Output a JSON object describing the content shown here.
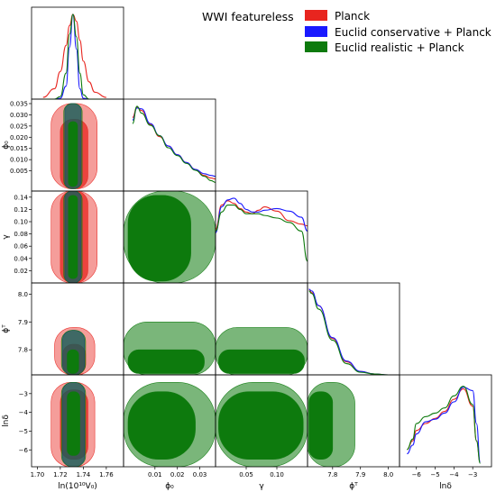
{
  "chart_data": {
    "type": "triangle-corner",
    "legend": {
      "title": "WWI featureless",
      "placement": "top-right",
      "entries": [
        {
          "label": "Planck",
          "color": "#e8251f"
        },
        {
          "label": "Euclid conservative + Planck",
          "color": "#1a1aff"
        },
        {
          "label": "Euclid realistic + Planck",
          "color": "#0d7a0d"
        }
      ]
    },
    "parameters": [
      {
        "id": "lnA",
        "label": "ln(10¹⁰V₀)",
        "range": [
          1.695,
          1.775
        ],
        "ticks": [
          1.7,
          1.72,
          1.74,
          1.76
        ],
        "tick_labels": [
          "1.70",
          "1.72",
          "1.74",
          "1.76"
        ]
      },
      {
        "id": "phi0",
        "label": "ϕ₀",
        "range": [
          -0.004,
          0.037
        ],
        "ticks": [
          0.005,
          0.01,
          0.015,
          0.02,
          0.025,
          0.03,
          0.035
        ],
        "tick_labels": [
          "0.005",
          "0.010",
          "0.015",
          "0.020",
          "0.025",
          "0.030",
          "0.035"
        ],
        "bottom_ticks": [
          0.01,
          0.02,
          0.03
        ],
        "bottom_tick_labels": [
          "0.01",
          "0.02",
          "0.03"
        ]
      },
      {
        "id": "gamma",
        "label": "γ",
        "range": [
          0.0,
          0.15
        ],
        "ticks": [
          0.02,
          0.04,
          0.06,
          0.08,
          0.1,
          0.12,
          0.14
        ],
        "tick_labels": [
          "0.02",
          "0.04",
          "0.06",
          "0.08",
          "0.10",
          "0.12",
          "0.14"
        ],
        "bottom_ticks": [
          0.05,
          0.1
        ],
        "bottom_tick_labels": [
          "0.05",
          "0.10"
        ]
      },
      {
        "id": "phiT",
        "label": "ϕᵀ",
        "range": [
          7.71,
          8.04
        ],
        "ticks": [
          7.8,
          7.9,
          8.0
        ],
        "tick_labels": [
          "7.8",
          "7.9",
          "8.0"
        ]
      },
      {
        "id": "lndelta",
        "label": "lnδ",
        "range": [
          -6.9,
          -2.0
        ],
        "ticks": [
          -6,
          -5,
          -4,
          -3
        ],
        "tick_labels": [
          "−6",
          "−5",
          "−4",
          "−3"
        ]
      }
    ],
    "marginals": [
      {
        "param": "lnA",
        "x": [
          1.705,
          1.715,
          1.72,
          1.725,
          1.728,
          1.731,
          1.734,
          1.737,
          1.74,
          1.745,
          1.75,
          1.76
        ],
        "series": [
          {
            "name": "Planck",
            "y": [
              0.02,
              0.12,
              0.32,
              0.62,
              0.85,
              0.98,
              0.9,
              0.68,
              0.44,
              0.2,
              0.08,
              0.02
            ]
          },
          {
            "name": "Euclid conservative + Planck",
            "y": [
              0.0,
              0.0,
              0.01,
              0.15,
              0.6,
              0.98,
              0.58,
              0.12,
              0.01,
              0.0,
              0.0,
              0.0
            ]
          },
          {
            "name": "Euclid realistic + Planck",
            "y": [
              0.0,
              0.0,
              0.03,
              0.3,
              0.75,
              0.98,
              0.72,
              0.3,
              0.05,
              0.0,
              0.0,
              0.0
            ]
          }
        ]
      },
      {
        "param": "phi0",
        "x": [
          0.0,
          0.002,
          0.004,
          0.008,
          0.012,
          0.016,
          0.02,
          0.024,
          0.028,
          0.032,
          0.035,
          0.037
        ],
        "series": [
          {
            "name": "Planck",
            "y": [
              0.85,
              0.97,
              0.93,
              0.77,
              0.63,
              0.52,
              0.42,
              0.33,
              0.25,
              0.18,
              0.15,
              0.14
            ]
          },
          {
            "name": "Euclid conservative + Planck",
            "y": [
              0.82,
              0.96,
              0.95,
              0.78,
              0.64,
              0.52,
              0.42,
              0.33,
              0.25,
              0.2,
              0.18,
              0.17
            ]
          },
          {
            "name": "Euclid realistic + Planck",
            "y": [
              0.78,
              0.98,
              0.9,
              0.76,
              0.64,
              0.5,
              0.41,
              0.32,
              0.24,
              0.17,
              0.12,
              0.1
            ]
          }
        ]
      },
      {
        "param": "gamma",
        "x": [
          0.0,
          0.01,
          0.02,
          0.03,
          0.04,
          0.05,
          0.06,
          0.07,
          0.08,
          0.1,
          0.12,
          0.14,
          0.15
        ],
        "series": [
          {
            "name": "Planck",
            "y": [
              0.62,
              0.9,
              0.95,
              0.92,
              0.86,
              0.82,
              0.8,
              0.84,
              0.88,
              0.83,
              0.72,
              0.68,
              0.66
            ]
          },
          {
            "name": "Euclid conservative + Planck",
            "y": [
              0.58,
              0.88,
              0.96,
              0.98,
              0.92,
              0.85,
              0.82,
              0.82,
              0.84,
              0.86,
              0.83,
              0.76,
              0.6
            ]
          },
          {
            "name": "Euclid realistic + Planck",
            "y": [
              0.6,
              0.82,
              0.9,
              0.9,
              0.85,
              0.8,
              0.8,
              0.8,
              0.78,
              0.75,
              0.7,
              0.6,
              0.25
            ]
          }
        ]
      },
      {
        "param": "phiT",
        "x": [
          7.715,
          7.725,
          7.75,
          7.8,
          7.85,
          7.9,
          7.95,
          8.0
        ],
        "series": [
          {
            "name": "Planck",
            "y": [
              0.99,
              0.95,
              0.8,
              0.42,
              0.15,
              0.04,
              0.01,
              0.0
            ]
          },
          {
            "name": "Euclid conservative + Planck",
            "y": [
              0.99,
              0.97,
              0.8,
              0.43,
              0.16,
              0.04,
              0.01,
              0.0
            ]
          },
          {
            "name": "Euclid realistic + Planck",
            "y": [
              0.97,
              0.94,
              0.76,
              0.4,
              0.13,
              0.03,
              0.01,
              0.0
            ]
          }
        ]
      },
      {
        "param": "lndelta",
        "x": [
          -6.5,
          -6.2,
          -6.0,
          -5.5,
          -5.0,
          -4.5,
          -4.0,
          -3.5,
          -3.0,
          -2.8,
          -2.6
        ],
        "series": [
          {
            "name": "Planck",
            "y": [
              0.2,
              0.3,
              0.42,
              0.5,
              0.56,
              0.64,
              0.78,
              0.9,
              0.7,
              0.3,
              0.05
            ]
          },
          {
            "name": "Euclid conservative + Planck",
            "y": [
              0.15,
              0.25,
              0.38,
              0.52,
              0.55,
              0.62,
              0.75,
              0.92,
              0.88,
              0.5,
              0.05
            ]
          },
          {
            "name": "Euclid realistic + Planck",
            "y": [
              0.2,
              0.32,
              0.5,
              0.58,
              0.62,
              0.68,
              0.82,
              0.93,
              0.72,
              0.3,
              0.04
            ]
          }
        ]
      }
    ],
    "contours_2d": [
      {
        "x": "lnA",
        "y": "phi0",
        "regions": [
          {
            "series": "Planck",
            "level": "95%",
            "x": [
              1.712,
              1.752
            ],
            "y": [
              -0.003,
              0.035
            ]
          },
          {
            "series": "Planck",
            "level": "68%",
            "x": [
              1.72,
              1.744
            ],
            "y": [
              -0.003,
              0.028
            ]
          },
          {
            "series": "Euclid conservative + Planck",
            "level": "95%",
            "x": [
              1.724,
              1.738
            ],
            "y": [
              -0.003,
              0.035
            ]
          },
          {
            "series": "Euclid realistic + Planck",
            "level": "95%",
            "x": [
              1.723,
              1.739
            ],
            "y": [
              -0.003,
              0.035
            ]
          },
          {
            "series": "Euclid realistic + Planck",
            "level": "68%",
            "x": [
              1.727,
              1.735
            ],
            "y": [
              -0.002,
              0.027
            ]
          }
        ]
      },
      {
        "x": "lnA",
        "y": "gamma",
        "regions": [
          {
            "series": "Planck",
            "level": "95%",
            "x": [
              1.712,
              1.752
            ],
            "y": [
              0.0,
              0.15
            ]
          },
          {
            "series": "Planck",
            "level": "68%",
            "x": [
              1.72,
              1.744
            ],
            "y": [
              0.0,
              0.15
            ]
          },
          {
            "series": "Euclid conservative + Planck",
            "level": "95%",
            "x": [
              1.724,
              1.738
            ],
            "y": [
              0.0,
              0.15
            ]
          },
          {
            "series": "Euclid realistic + Planck",
            "level": "95%",
            "x": [
              1.723,
              1.739
            ],
            "y": [
              0.0,
              0.15
            ]
          },
          {
            "series": "Euclid realistic + Planck",
            "level": "68%",
            "x": [
              1.727,
              1.735
            ],
            "y": [
              0.007,
              0.143
            ]
          }
        ]
      },
      {
        "x": "lnA",
        "y": "phiT",
        "regions": [
          {
            "series": "Planck",
            "level": "95%",
            "x": [
              1.715,
              1.75
            ],
            "y": [
              7.71,
              7.88
            ]
          },
          {
            "series": "Planck",
            "level": "68%",
            "x": [
              1.722,
              1.742
            ],
            "y": [
              7.71,
              7.82
            ]
          },
          {
            "series": "Euclid conservative + Planck",
            "level": "95%",
            "x": [
              1.722,
              1.741
            ],
            "y": [
              7.71,
              7.87
            ]
          },
          {
            "series": "Euclid realistic + Planck",
            "level": "95%",
            "x": [
              1.721,
              1.742
            ],
            "y": [
              7.71,
              7.87
            ]
          },
          {
            "series": "Euclid realistic + Planck",
            "level": "68%",
            "x": [
              1.726,
              1.736
            ],
            "y": [
              7.715,
              7.8
            ]
          }
        ]
      },
      {
        "x": "lnA",
        "y": "lndelta",
        "regions": [
          {
            "series": "Planck",
            "level": "95%",
            "x": [
              1.712,
              1.75
            ],
            "y": [
              -6.9,
              -2.4
            ]
          },
          {
            "series": "Planck",
            "level": "68%",
            "x": [
              1.72,
              1.744
            ],
            "y": [
              -6.5,
              -2.8
            ]
          },
          {
            "series": "Euclid conservative + Planck",
            "level": "95%",
            "x": [
              1.722,
              1.741
            ],
            "y": [
              -6.9,
              -2.4
            ]
          },
          {
            "series": "Euclid realistic + Planck",
            "level": "95%",
            "x": [
              1.721,
              1.742
            ],
            "y": [
              -6.9,
              -2.4
            ]
          },
          {
            "series": "Euclid realistic + Planck",
            "level": "68%",
            "x": [
              1.726,
              1.737
            ],
            "y": [
              -6.3,
              -2.9
            ]
          }
        ]
      },
      {
        "x": "phi0",
        "y": "gamma",
        "regions": [
          {
            "series": "Euclid realistic + Planck",
            "level": "95%",
            "x": [
              -0.004,
              0.037
            ],
            "y": [
              0.0,
              0.15
            ]
          },
          {
            "series": "Euclid realistic + Planck",
            "level": "68%",
            "x": [
              -0.002,
              0.026
            ],
            "y": [
              0.003,
              0.143
            ]
          }
        ]
      },
      {
        "x": "phi0",
        "y": "phiT",
        "regions": [
          {
            "series": "Euclid realistic + Planck",
            "level": "95%",
            "x": [
              -0.004,
              0.037
            ],
            "y": [
              7.71,
              7.9
            ]
          },
          {
            "series": "Euclid realistic + Planck",
            "level": "68%",
            "x": [
              -0.002,
              0.032
            ],
            "y": [
              7.715,
              7.8
            ]
          }
        ]
      },
      {
        "x": "phi0",
        "y": "lndelta",
        "regions": [
          {
            "series": "Euclid realistic + Planck",
            "level": "95%",
            "x": [
              -0.004,
              0.037
            ],
            "y": [
              -6.9,
              -2.4
            ]
          },
          {
            "series": "Euclid realistic + Planck",
            "level": "68%",
            "x": [
              -0.002,
              0.028
            ],
            "y": [
              -6.5,
              -2.9
            ]
          }
        ]
      },
      {
        "x": "gamma",
        "y": "phiT",
        "regions": [
          {
            "series": "Euclid realistic + Planck",
            "level": "95%",
            "x": [
              0.0,
              0.15
            ],
            "y": [
              7.71,
              7.88
            ]
          },
          {
            "series": "Euclid realistic + Planck",
            "level": "68%",
            "x": [
              0.005,
              0.145
            ],
            "y": [
              7.715,
              7.8
            ]
          }
        ]
      },
      {
        "x": "gamma",
        "y": "lndelta",
        "regions": [
          {
            "series": "Euclid realistic + Planck",
            "level": "95%",
            "x": [
              0.0,
              0.15
            ],
            "y": [
              -6.9,
              -2.4
            ]
          },
          {
            "series": "Euclid realistic + Planck",
            "level": "68%",
            "x": [
              0.005,
              0.143
            ],
            "y": [
              -6.5,
              -2.9
            ]
          }
        ]
      },
      {
        "x": "phiT",
        "y": "lndelta",
        "regions": [
          {
            "series": "Euclid realistic + Planck",
            "level": "95%",
            "x": [
              7.71,
              7.88
            ],
            "y": [
              -6.9,
              -2.4
            ]
          },
          {
            "series": "Euclid realistic + Planck",
            "level": "68%",
            "x": [
              7.715,
              7.8
            ],
            "y": [
              -6.5,
              -2.9
            ]
          }
        ]
      }
    ]
  }
}
